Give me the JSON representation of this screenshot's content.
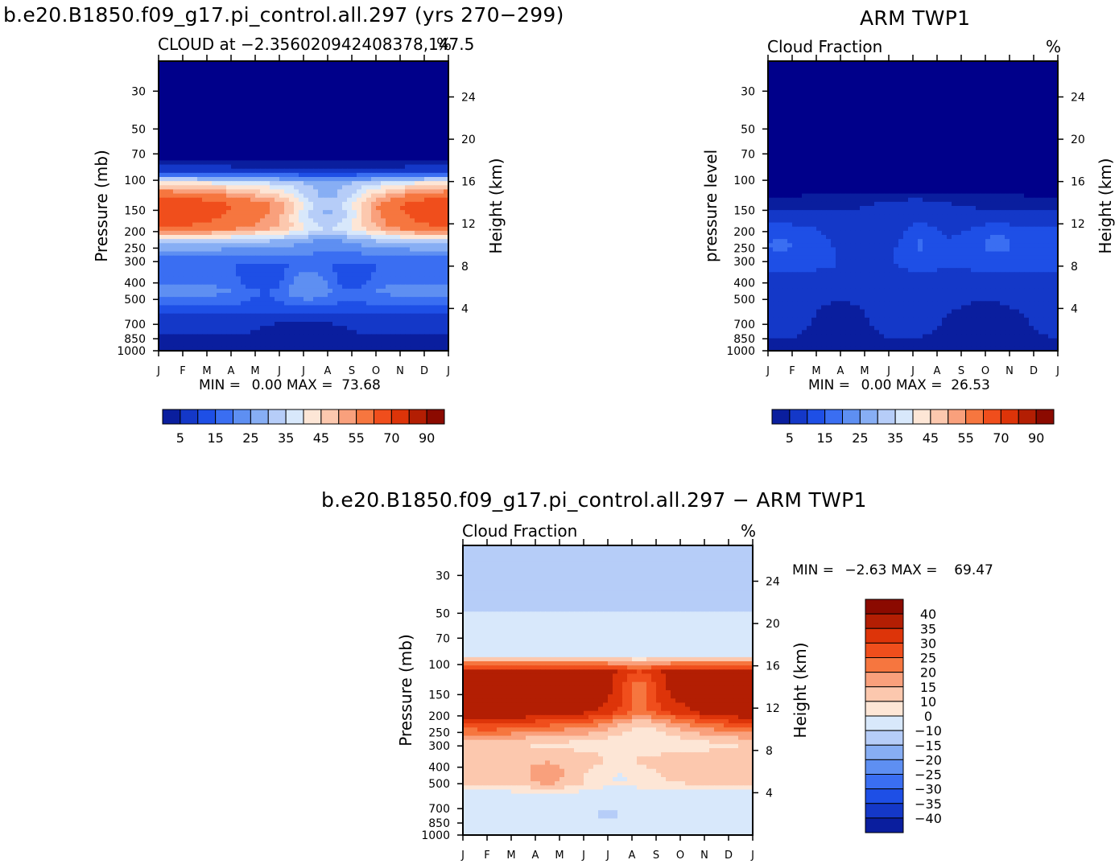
{
  "figure": {
    "title_left": "b.e20.B1850.f09_g17.pi_control.all.297 (yrs 270−299)",
    "title_right": "ARM TWP1",
    "title_bottom": "b.e20.B1850.f09_g17.pi_control.all.297 − ARM TWP1"
  },
  "chart_data": [
    {
      "type": "heatmap",
      "panel": "model",
      "subtitle": "CLOUD at −2.356020942408378,147.5",
      "unit": "%",
      "ylabel": "Pressure (mb)",
      "ylabel_right": "Height (km)",
      "x_ticks": [
        "J",
        "F",
        "M",
        "A",
        "M",
        "J",
        "J",
        "A",
        "S",
        "O",
        "N",
        "D",
        "J"
      ],
      "y_ticks": [
        30,
        50,
        70,
        100,
        150,
        200,
        250,
        300,
        400,
        500,
        700,
        850,
        1000
      ],
      "y_right_ticks": [
        24,
        20,
        16,
        12,
        8,
        4
      ],
      "ylim": [
        1000,
        20
      ],
      "y_scale": "log",
      "min_label": "MIN =",
      "min_value": "0.00",
      "max_label": "MAX =",
      "max_value": "73.68",
      "colorbar_labels": [
        "5",
        "15",
        "25",
        "35",
        "45",
        "55",
        "70",
        "90"
      ],
      "profile": [
        {
          "p": 20,
          "v": 0
        },
        {
          "p": 60,
          "v": 0
        },
        {
          "p": 75,
          "v": 3
        },
        {
          "p": 88,
          "v": 13
        },
        {
          "p": 105,
          "v": 42
        },
        {
          "p": 140,
          "v": 62
        },
        {
          "p": 190,
          "v": 57
        },
        {
          "p": 230,
          "v": 34
        },
        {
          "p": 280,
          "v": 24
        },
        {
          "p": 320,
          "v": 21
        },
        {
          "p": 450,
          "v": 27
        },
        {
          "p": 560,
          "v": 19
        },
        {
          "p": 650,
          "v": 11
        },
        {
          "p": 800,
          "v": 10
        },
        {
          "p": 960,
          "v": 8
        },
        {
          "p": 1000,
          "v": 7
        }
      ]
    },
    {
      "type": "heatmap",
      "panel": "obs",
      "subtitle": "Cloud Fraction",
      "unit": "%",
      "ylabel": "pressure level",
      "ylabel_right": "Height (km)",
      "x_ticks": [
        "J",
        "F",
        "M",
        "A",
        "M",
        "J",
        "J",
        "A",
        "S",
        "O",
        "N",
        "D",
        "J"
      ],
      "y_ticks": [
        30,
        50,
        70,
        100,
        150,
        200,
        250,
        300,
        400,
        500,
        700,
        850,
        1000
      ],
      "y_right_ticks": [
        24,
        20,
        16,
        12,
        8,
        4
      ],
      "ylim": [
        1000,
        20
      ],
      "y_scale": "log",
      "min_label": "MIN =",
      "min_value": "0.00",
      "max_label": "MAX =",
      "max_value": "26.53",
      "colorbar_labels": [
        "5",
        "15",
        "25",
        "35",
        "45",
        "55",
        "70",
        "90"
      ],
      "profile": [
        {
          "p": 20,
          "v": 1
        },
        {
          "p": 115,
          "v": 2
        },
        {
          "p": 130,
          "v": 7
        },
        {
          "p": 165,
          "v": 11
        },
        {
          "p": 190,
          "v": 14
        },
        {
          "p": 260,
          "v": 16
        },
        {
          "p": 330,
          "v": 15
        },
        {
          "p": 420,
          "v": 13
        },
        {
          "p": 550,
          "v": 12
        },
        {
          "p": 700,
          "v": 11
        },
        {
          "p": 850,
          "v": 10
        },
        {
          "p": 990,
          "v": 8
        },
        {
          "p": 1000,
          "v": 5
        }
      ]
    },
    {
      "type": "heatmap",
      "panel": "difference",
      "subtitle": "Cloud Fraction",
      "unit": "%",
      "ylabel": "Pressure (mb)",
      "ylabel_right": "Height (km)",
      "x_ticks": [
        "J",
        "F",
        "M",
        "A",
        "M",
        "J",
        "J",
        "A",
        "S",
        "O",
        "N",
        "D",
        "J"
      ],
      "y_ticks": [
        30,
        50,
        70,
        100,
        150,
        200,
        250,
        300,
        400,
        500,
        700,
        850,
        1000
      ],
      "y_right_ticks": [
        24,
        20,
        16,
        12,
        8,
        4
      ],
      "ylim": [
        1000,
        20
      ],
      "y_scale": "log",
      "min_label": "MIN =",
      "min_value": "−2.63",
      "max_label": "MAX =",
      "max_value": "69.47",
      "colorbar_labels": [
        "40",
        "35",
        "30",
        "25",
        "20",
        "15",
        "10",
        "0",
        "−10",
        "−15",
        "−20",
        "−25",
        "−30",
        "−35",
        "−40"
      ],
      "profile": [
        {
          "p": 20,
          "v": -2
        },
        {
          "p": 49,
          "v": -2
        },
        {
          "p": 52,
          "v": 3
        },
        {
          "p": 85,
          "v": 4
        },
        {
          "p": 95,
          "v": 20
        },
        {
          "p": 110,
          "v": 42
        },
        {
          "p": 190,
          "v": 42
        },
        {
          "p": 240,
          "v": 25
        },
        {
          "p": 290,
          "v": 14
        },
        {
          "p": 380,
          "v": 17
        },
        {
          "p": 500,
          "v": 15
        },
        {
          "p": 600,
          "v": 6
        },
        {
          "p": 800,
          "v": 3
        },
        {
          "p": 1000,
          "v": 2
        }
      ]
    }
  ]
}
